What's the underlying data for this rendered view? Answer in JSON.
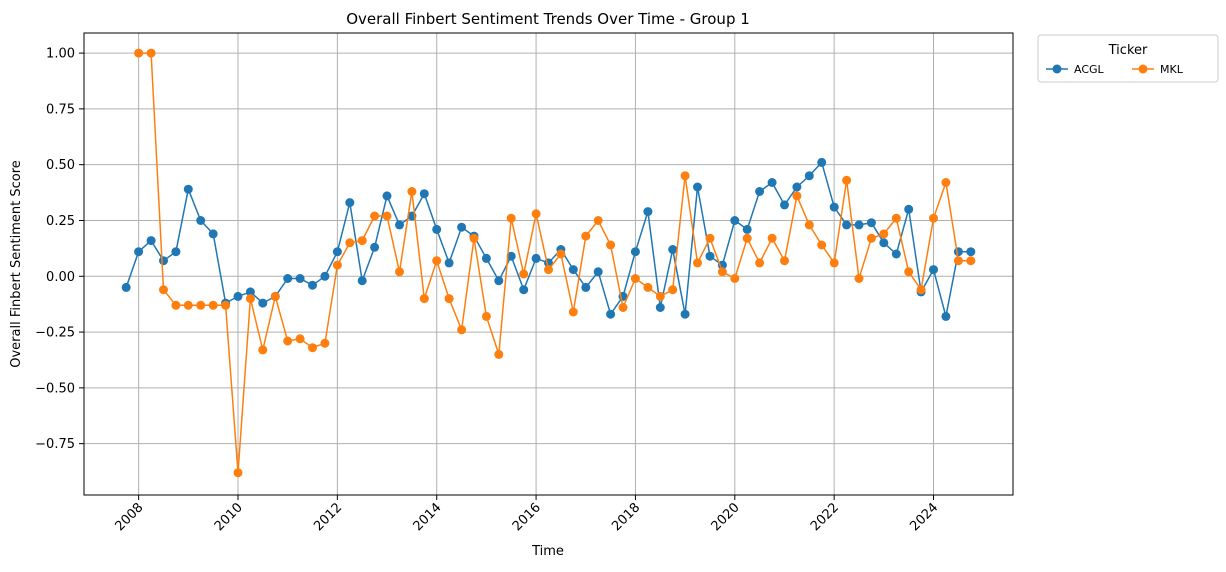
{
  "chart_data": {
    "type": "line",
    "title": "Overall Finbert Sentiment Trends Over Time - Group 1",
    "xlabel": "Time",
    "ylabel": "Overall Finbert Sentiment Score",
    "xlim": [
      2006.9,
      2025.6
    ],
    "ylim": [
      -0.98,
      1.09
    ],
    "x_ticks": [
      2008,
      2010,
      2012,
      2014,
      2016,
      2018,
      2020,
      2022,
      2024
    ],
    "x_tick_labels": [
      "2008",
      "2010",
      "2012",
      "2014",
      "2016",
      "2018",
      "2020",
      "2022",
      "2024"
    ],
    "y_ticks": [
      -0.75,
      -0.5,
      -0.25,
      0.0,
      0.25,
      0.5,
      0.75,
      1.0
    ],
    "y_tick_labels": [
      "−0.75",
      "−0.50",
      "−0.25",
      "0.00",
      "0.25",
      "0.50",
      "0.75",
      "1.00"
    ],
    "grid": true,
    "legend": {
      "title": "Ticker",
      "placement": "outside-top-right",
      "columns": 2
    },
    "series": [
      {
        "name": "ACGL",
        "color": "#1f77b4",
        "x": [
          2007.75,
          2008.0,
          2008.25,
          2008.5,
          2008.75,
          2009.0,
          2009.25,
          2009.5,
          2009.75,
          2010.0,
          2010.25,
          2010.5,
          2010.75,
          2011.0,
          2011.25,
          2011.5,
          2011.75,
          2012.0,
          2012.25,
          2012.5,
          2012.75,
          2013.0,
          2013.25,
          2013.5,
          2013.75,
          2014.0,
          2014.25,
          2014.5,
          2014.75,
          2015.0,
          2015.25,
          2015.5,
          2015.75,
          2016.0,
          2016.25,
          2016.5,
          2016.75,
          2017.0,
          2017.25,
          2017.5,
          2017.75,
          2018.0,
          2018.25,
          2018.5,
          2018.75,
          2019.0,
          2019.25,
          2019.5,
          2019.75,
          2020.0,
          2020.25,
          2020.5,
          2020.75,
          2021.0,
          2021.25,
          2021.5,
          2021.75,
          2022.0,
          2022.25,
          2022.5,
          2022.75,
          2023.0,
          2023.25,
          2023.5,
          2023.75,
          2024.0,
          2024.25,
          2024.5,
          2024.75
        ],
        "y": [
          -0.05,
          0.11,
          0.16,
          0.07,
          0.11,
          0.39,
          0.25,
          0.19,
          -0.12,
          -0.09,
          -0.07,
          -0.12,
          -0.09,
          -0.01,
          -0.01,
          -0.04,
          0.0,
          0.11,
          0.33,
          -0.02,
          0.13,
          0.36,
          0.23,
          0.27,
          0.37,
          0.21,
          0.06,
          0.22,
          0.18,
          0.08,
          -0.02,
          0.09,
          -0.06,
          0.08,
          0.06,
          0.12,
          0.03,
          -0.05,
          0.02,
          -0.17,
          -0.09,
          0.11,
          0.29,
          -0.14,
          0.12,
          -0.17,
          0.4,
          0.09,
          0.05,
          0.25,
          0.21,
          0.38,
          0.42,
          0.32,
          0.4,
          0.45,
          0.51,
          0.31,
          0.23,
          0.23,
          0.24,
          0.15,
          0.1,
          0.3,
          -0.07,
          0.03,
          -0.18,
          0.11,
          0.11
        ]
      },
      {
        "name": "MKL",
        "color": "#ff7f0e",
        "x": [
          2008.0,
          2008.25,
          2008.5,
          2008.75,
          2009.0,
          2009.25,
          2009.5,
          2009.75,
          2010.0,
          2010.25,
          2010.5,
          2010.75,
          2011.0,
          2011.25,
          2011.5,
          2011.75,
          2012.0,
          2012.25,
          2012.5,
          2012.75,
          2013.0,
          2013.25,
          2013.5,
          2013.75,
          2014.0,
          2014.25,
          2014.5,
          2014.75,
          2015.0,
          2015.25,
          2015.5,
          2015.75,
          2016.0,
          2016.25,
          2016.5,
          2016.75,
          2017.0,
          2017.25,
          2017.5,
          2017.75,
          2018.0,
          2018.25,
          2018.5,
          2018.75,
          2019.0,
          2019.25,
          2019.5,
          2019.75,
          2020.0,
          2020.25,
          2020.5,
          2020.75,
          2021.0,
          2021.25,
          2021.5,
          2021.75,
          2022.0,
          2022.25,
          2022.5,
          2022.75,
          2023.0,
          2023.25,
          2023.5,
          2023.75,
          2024.0,
          2024.25,
          2024.5,
          2024.75
        ],
        "y": [
          1.0,
          1.0,
          -0.06,
          -0.13,
          -0.13,
          -0.13,
          -0.13,
          -0.13,
          -0.88,
          -0.1,
          -0.33,
          -0.09,
          -0.29,
          -0.28,
          -0.32,
          -0.3,
          0.05,
          0.15,
          0.16,
          0.27,
          0.27,
          0.02,
          0.38,
          -0.1,
          0.07,
          -0.1,
          -0.24,
          0.17,
          -0.18,
          -0.35,
          0.26,
          0.01,
          0.28,
          0.03,
          0.1,
          -0.16,
          0.18,
          0.25,
          0.14,
          -0.14,
          -0.01,
          -0.05,
          -0.09,
          -0.06,
          0.45,
          0.06,
          0.17,
          0.02,
          -0.01,
          0.17,
          0.06,
          0.17,
          0.07,
          0.36,
          0.23,
          0.14,
          0.06,
          0.43,
          -0.01,
          0.17,
          0.19,
          0.26,
          0.02,
          -0.06,
          0.26,
          0.42,
          0.07,
          0.07
        ]
      }
    ]
  }
}
